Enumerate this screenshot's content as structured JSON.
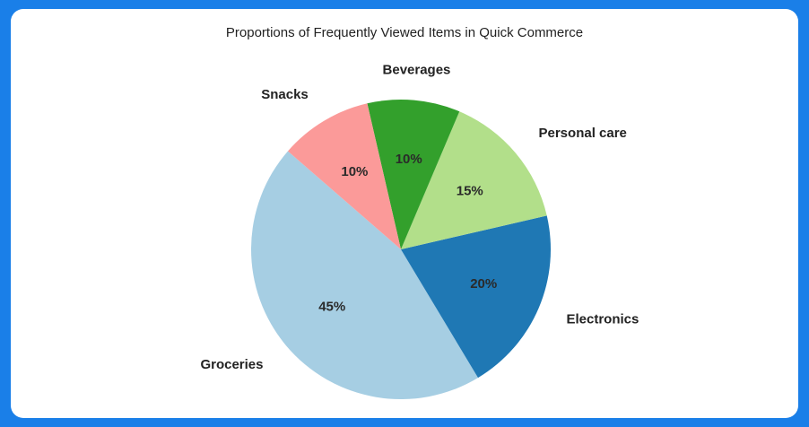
{
  "chart_data": {
    "type": "pie",
    "title": "Proportions of Frequently Viewed Items in Quick Commerce",
    "categories": [
      "Groceries",
      "Electronics",
      "Personal care",
      "Beverages",
      "Snacks"
    ],
    "values": [
      45,
      20,
      15,
      10,
      10
    ],
    "value_labels": [
      "45%",
      "20%",
      "15%",
      "10%",
      "10%"
    ],
    "colors": [
      "#a6cee3",
      "#1f78b4",
      "#b2df8a",
      "#33a02c",
      "#fb9a99"
    ]
  }
}
